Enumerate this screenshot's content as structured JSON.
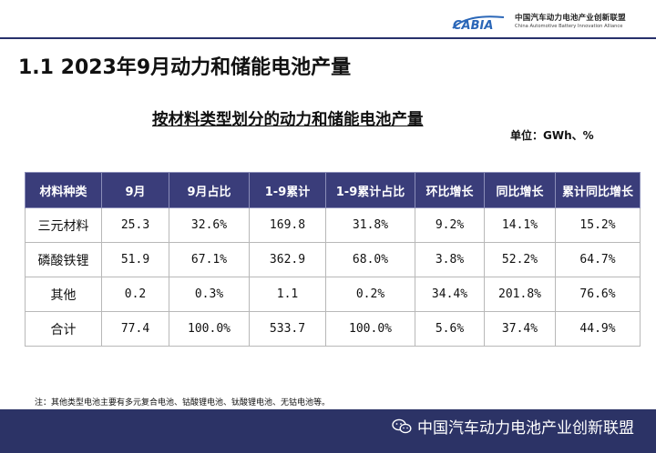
{
  "logo": {
    "mark_text": "CABIA",
    "org_cn": "中国汽车动力电池产业创新联盟",
    "org_en": "China Automotive Battery Innovation Alliance"
  },
  "slide_title": "1.1 2023年9月动力和储能电池产量",
  "table_title": "按材料类型划分的动力和储能电池产量",
  "unit": "单位：GWh、%",
  "table": {
    "headers": [
      "材料种类",
      "9月",
      "9月占比",
      "1-9累计",
      "1-9累计占比",
      "环比增长",
      "同比增长",
      "累计同比增长"
    ],
    "rows": [
      [
        "三元材料",
        "25.3",
        "32.6%",
        "169.8",
        "31.8%",
        "9.2%",
        "14.1%",
        "15.2%"
      ],
      [
        "磷酸铁锂",
        "51.9",
        "67.1%",
        "362.9",
        "68.0%",
        "3.8%",
        "52.2%",
        "64.7%"
      ],
      [
        "其他",
        "0.2",
        "0.3%",
        "1.1",
        "0.2%",
        "34.4%",
        "201.8%",
        "76.6%"
      ],
      [
        "合计",
        "77.4",
        "100.0%",
        "533.7",
        "100.0%",
        "5.6%",
        "37.4%",
        "44.9%"
      ]
    ]
  },
  "note": "注：其他类型电池主要有多元复合电池、钴酸锂电池、钛酸锂电池、无钴电池等。",
  "footer": {
    "icon": "wechat-icon",
    "brand": "中国汽车动力电池产业创新联盟"
  },
  "colors": {
    "header_bg": "#3a3d7a",
    "footer_bg": "#2c3366",
    "logo_blue": "#2b67b8"
  }
}
